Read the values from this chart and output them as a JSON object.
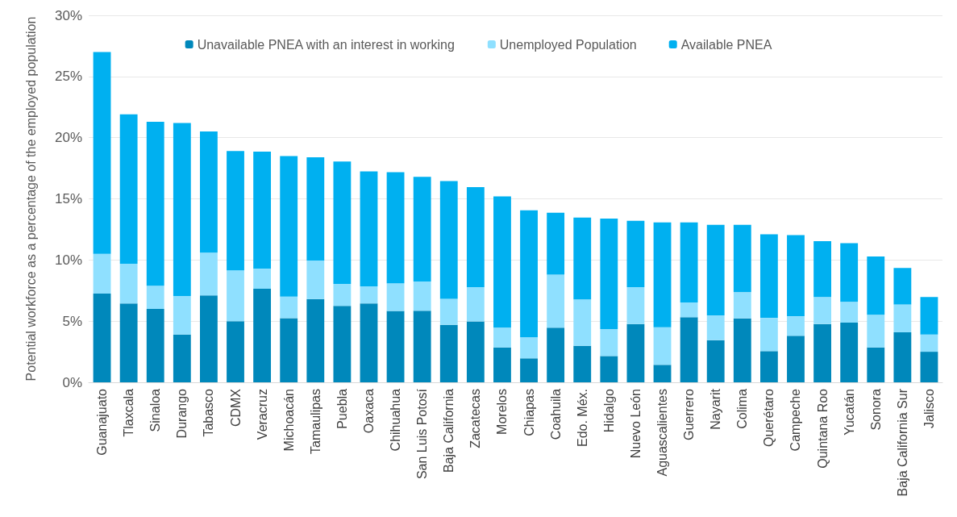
{
  "chart_data": {
    "type": "bar",
    "stacked": true,
    "ylabel": "Potential workforce as a percentage of the employed population",
    "categories": [
      "Guanajuato",
      "Tlaxcala",
      "Sinaloa",
      "Durango",
      "Tabasco",
      "CDMX",
      "Veracruz",
      "Michoacán",
      "Tamaulipas",
      "Puebla",
      "Oaxaca",
      "Chihuahua",
      "San Luis Potosí",
      "Baja California",
      "Zacatecas",
      "Morelos",
      "Chiapas",
      "Coahuila",
      "Edo. Méx.",
      "Hidalgo",
      "Nuevo León",
      "Aguascalientes",
      "Guerrero",
      "Nayarit",
      "Colima",
      "Querétaro",
      "Campeche",
      "Quintana Roo",
      "Yucatán",
      "Sonora",
      "Baja California Sur",
      "Jalisco"
    ],
    "series": [
      {
        "name": "Unavailable PNEA with an interest in working",
        "color": "#0088bb",
        "values": [
          7.25,
          6.45,
          6.0,
          3.9,
          7.1,
          5.0,
          7.65,
          5.25,
          6.8,
          6.25,
          6.45,
          5.83,
          5.85,
          4.7,
          4.97,
          2.85,
          1.96,
          4.46,
          2.99,
          2.15,
          4.77,
          1.43,
          5.32,
          3.45,
          5.23,
          2.55,
          3.8,
          4.77,
          4.88,
          2.85,
          4.09,
          2.5
        ]
      },
      {
        "name": "Unemployed Population",
        "color": "#8fe0ff",
        "values": [
          3.25,
          3.25,
          1.9,
          3.15,
          3.5,
          4.15,
          1.65,
          1.75,
          3.15,
          1.8,
          1.4,
          2.27,
          2.4,
          2.13,
          2.81,
          1.61,
          1.71,
          4.35,
          3.78,
          2.2,
          3.01,
          3.07,
          1.21,
          2.02,
          2.13,
          2.72,
          1.6,
          2.2,
          1.69,
          2.67,
          2.28,
          1.41
        ]
      },
      {
        "name": "Available PNEA",
        "color": "#00b0f0",
        "values": [
          16.5,
          12.2,
          13.4,
          14.15,
          9.9,
          9.75,
          9.55,
          11.5,
          8.45,
          10.0,
          9.4,
          9.07,
          8.55,
          9.62,
          8.17,
          10.74,
          10.39,
          5.05,
          6.7,
          9.03,
          5.42,
          8.57,
          6.54,
          7.4,
          5.51,
          6.83,
          6.64,
          4.57,
          4.81,
          4.76,
          2.97,
          3.06
        ]
      }
    ],
    "ylim": [
      0,
      30
    ],
    "yticks": [
      {
        "value": 0,
        "label": "0%"
      },
      {
        "value": 5,
        "label": "5%"
      },
      {
        "value": 10,
        "label": "10%"
      },
      {
        "value": 15,
        "label": "15%"
      },
      {
        "value": 20,
        "label": "20%"
      },
      {
        "value": 25,
        "label": "25%"
      },
      {
        "value": 30,
        "label": "30%"
      }
    ],
    "grid": "y",
    "legend": "top"
  }
}
